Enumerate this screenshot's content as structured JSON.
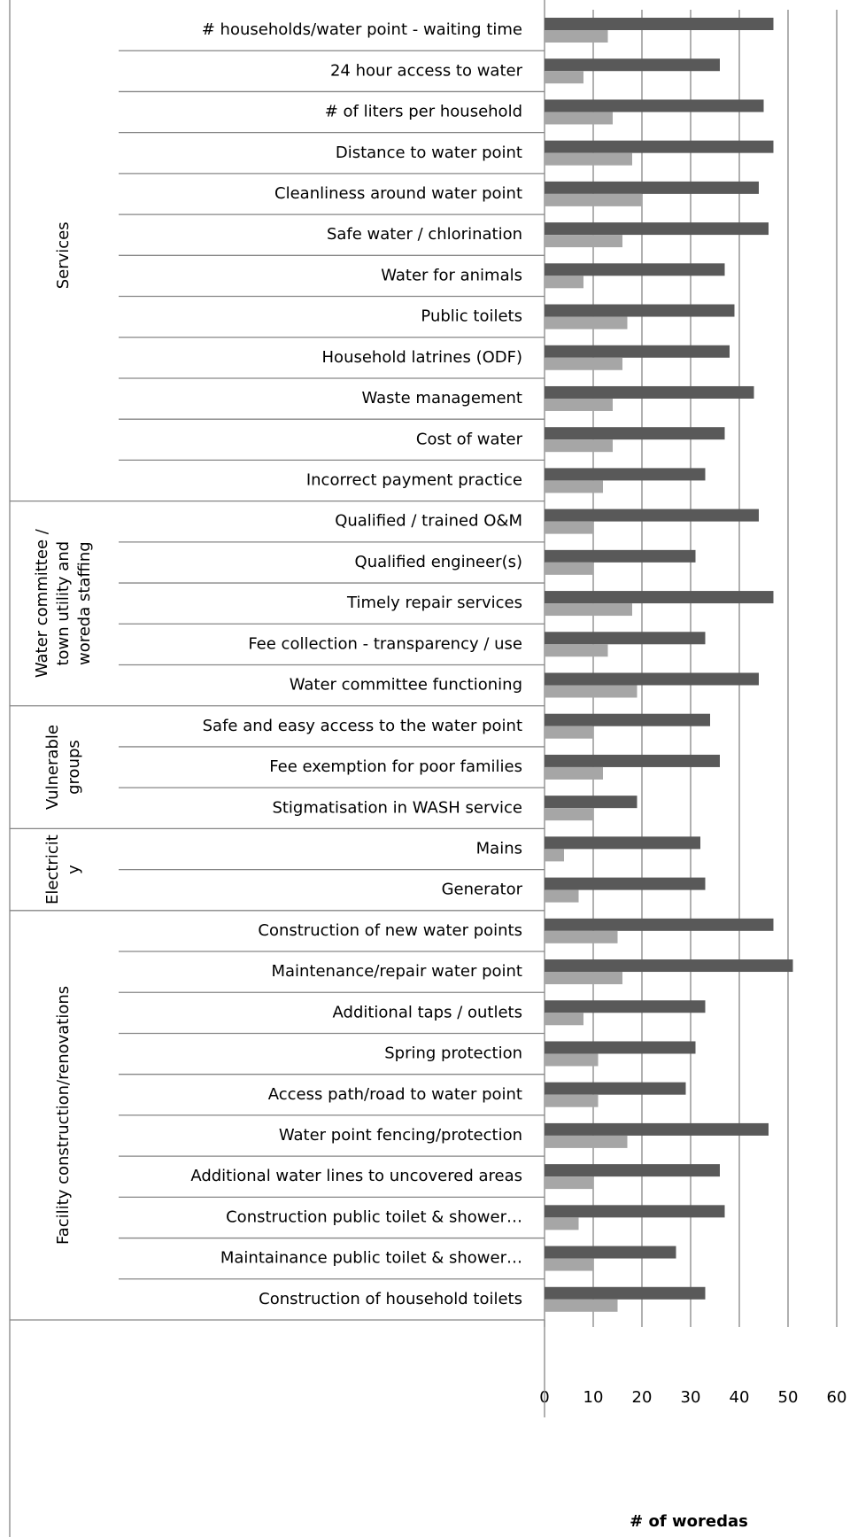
{
  "chart_data": {
    "type": "bar",
    "orientation": "horizontal",
    "x_label": "# of woredas",
    "xlim": [
      0,
      60
    ],
    "xticks": [
      0,
      10,
      20,
      30,
      40,
      50,
      60
    ],
    "grid": true,
    "groups": [
      {
        "lines": [
          "Services"
        ],
        "count": 12
      },
      {
        "lines": [
          "Water committee /",
          "town utility and",
          "woreda staffing"
        ],
        "count": 5
      },
      {
        "lines": [
          "Vulnerable",
          "groups"
        ],
        "count": 3
      },
      {
        "lines": [
          "Electricit",
          "y"
        ],
        "count": 2
      },
      {
        "lines": [
          "Facility construction/renovations"
        ],
        "count": 10
      }
    ],
    "categories": [
      "# households/water point - waiting time",
      "24 hour access to water",
      "# of liters per household",
      "Distance to water point",
      "Cleanliness around water point",
      "Safe water / chlorination",
      "Water for animals",
      "Public toilets",
      "Household latrines (ODF)",
      "Waste management",
      "Cost of water",
      "Incorrect payment practice",
      "Qualified / trained O&M",
      "Qualified engineer(s)",
      "Timely repair services",
      "Fee collection - transparency / use",
      "Water committee functioning",
      "Safe and easy access to the water point",
      "Fee exemption for poor families",
      "Stigmatisation in WASH service",
      "Mains",
      "Generator",
      "Construction of new water points",
      "Maintenance/repair water point",
      "Additional taps / outlets",
      "Spring protection",
      "Access path/road to water point",
      "Water point fencing/protection",
      "Additional water lines to uncovered areas",
      "Construction public toilet & shower…",
      "Maintainance public toilet & shower…",
      "Construction of household toilets"
    ],
    "series": [
      {
        "color": "#595959",
        "values": [
          47,
          36,
          45,
          47,
          44,
          46,
          37,
          39,
          38,
          43,
          37,
          33,
          44,
          31,
          47,
          33,
          44,
          34,
          36,
          19,
          32,
          33,
          47,
          51,
          33,
          31,
          29,
          46,
          36,
          37,
          27,
          33
        ]
      },
      {
        "color": "#a6a6a6",
        "values": [
          13,
          8,
          14,
          18,
          20,
          16,
          8,
          17,
          16,
          14,
          14,
          12,
          10,
          10,
          18,
          13,
          19,
          10,
          12,
          10,
          4,
          7,
          15,
          16,
          8,
          11,
          11,
          17,
          10,
          7,
          10,
          15
        ]
      }
    ]
  }
}
